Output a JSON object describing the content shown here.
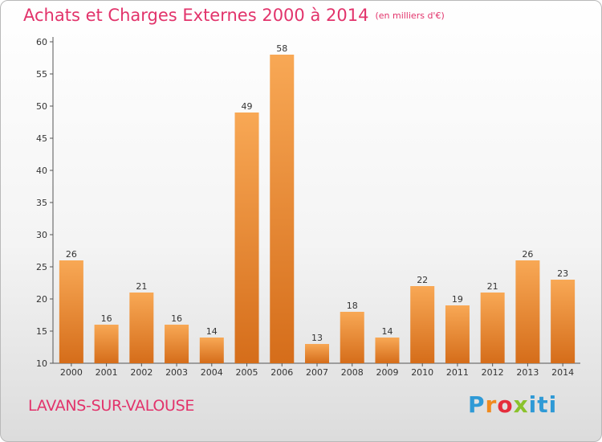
{
  "header": {
    "title": "Achats et Charges Externes 2000 à 2014",
    "unit": "(en milliers d'€)"
  },
  "footer": {
    "city": "LAVANS-SUR-VALOUSE",
    "logo_text": "Proxiti"
  },
  "colors": {
    "title": "#e2336b",
    "bar_light": "#f7a553",
    "bar_dark": "#d86f1b",
    "axis": "#555555"
  },
  "chart_data": {
    "type": "bar",
    "categories": [
      "2000",
      "2001",
      "2002",
      "2003",
      "2004",
      "2005",
      "2006",
      "2007",
      "2008",
      "2009",
      "2010",
      "2011",
      "2012",
      "2013",
      "2014"
    ],
    "values": [
      26,
      16,
      21,
      16,
      14,
      49,
      58,
      13,
      18,
      14,
      22,
      19,
      21,
      26,
      23
    ],
    "title": "Achats et Charges Externes 2000 à 2014",
    "ylim": [
      10,
      60
    ],
    "yticks": [
      10,
      15,
      20,
      25,
      30,
      35,
      40,
      45,
      50,
      55,
      60
    ],
    "grid": false,
    "legend": "none"
  }
}
